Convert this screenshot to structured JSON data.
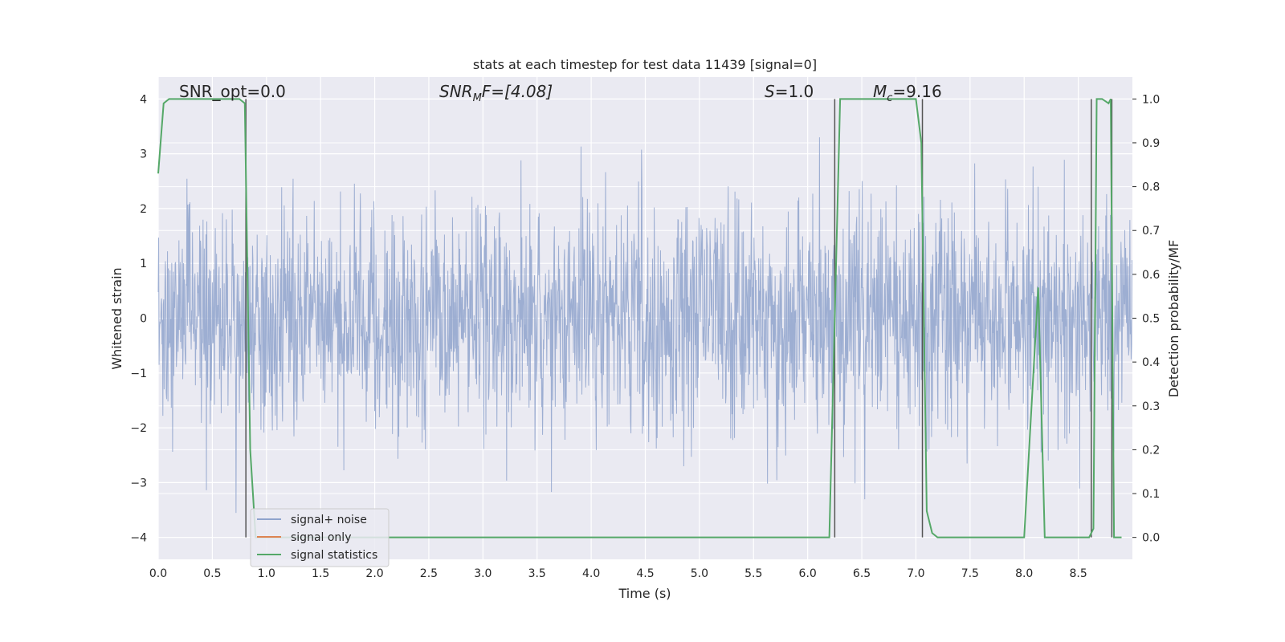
{
  "chart_data": {
    "type": "line",
    "title": "stats at each timestep for test data 11439 [signal=0]",
    "xlabel": "Time (s)",
    "ylabel": "Whitened strain",
    "ylabel_right": "Detection probability/MF",
    "xlim": [
      0.0,
      9.0
    ],
    "ylim": [
      -4.4,
      4.4
    ],
    "ylim_right": [
      -0.05,
      1.05
    ],
    "x_ticks": [
      "0.0",
      "0.5",
      "1.0",
      "1.5",
      "2.0",
      "2.5",
      "3.0",
      "3.5",
      "4.0",
      "4.5",
      "5.0",
      "5.5",
      "6.0",
      "6.5",
      "7.0",
      "7.5",
      "8.0",
      "8.5"
    ],
    "y_ticks": [
      "4",
      "3",
      "2",
      "1",
      "0",
      "−1",
      "−2",
      "−3",
      "−4"
    ],
    "y_ticks_right": [
      "1.0",
      "0.9",
      "0.8",
      "0.7",
      "0.6",
      "0.5",
      "0.4",
      "0.3",
      "0.2",
      "0.1",
      "0.0"
    ],
    "grid": true,
    "legend_position": "lower-left",
    "annotations": {
      "snr_opt": "SNR_opt=0.0",
      "snr_mf_label": "SNR",
      "snr_mf_sub": "M",
      "snr_mf_rest": "F=[4.08]",
      "s_label": "S",
      "s_rest": "=1.0",
      "mc_label": "M",
      "mc_sub": "c",
      "mc_rest": "=9.16"
    },
    "series": [
      {
        "name": "signal+ noise",
        "color": "#8fa3cc",
        "description_kind": "noise",
        "sample_rate_hz": 256,
        "duration_s": 9.0,
        "approx_std": 1.0,
        "approx_range": [
          -3.8,
          3.3
        ]
      },
      {
        "name": "signal only",
        "color": "#dd8452",
        "values": []
      },
      {
        "name": "signal statistics",
        "color": "#55a868",
        "axis": "right",
        "x": [
          0.0,
          0.05,
          0.1,
          0.4,
          0.75,
          0.8,
          0.85,
          0.9,
          1.0,
          2.0,
          3.0,
          4.0,
          5.0,
          6.0,
          6.2,
          6.25,
          6.3,
          6.5,
          7.0,
          7.05,
          7.1,
          7.15,
          7.2,
          7.25,
          7.5,
          8.0,
          8.13,
          8.19,
          8.5,
          8.6,
          8.64,
          8.67,
          8.72,
          8.78,
          8.8,
          8.83,
          8.9
        ],
        "y": [
          0.83,
          0.99,
          1.0,
          1.0,
          1.0,
          0.99,
          0.2,
          0.0,
          0.0,
          0.0,
          0.0,
          0.0,
          0.0,
          0.0,
          0.0,
          0.5,
          1.0,
          1.0,
          1.0,
          0.9,
          0.06,
          0.01,
          0.0,
          0.0,
          0.0,
          0.0,
          0.57,
          0.0,
          0.0,
          0.0,
          0.02,
          1.0,
          1.0,
          0.99,
          1.0,
          0.0,
          0.0
        ]
      }
    ],
    "vertical_lines_x": [
      0.81,
      6.25,
      7.06,
      8.62,
      8.81
    ]
  }
}
